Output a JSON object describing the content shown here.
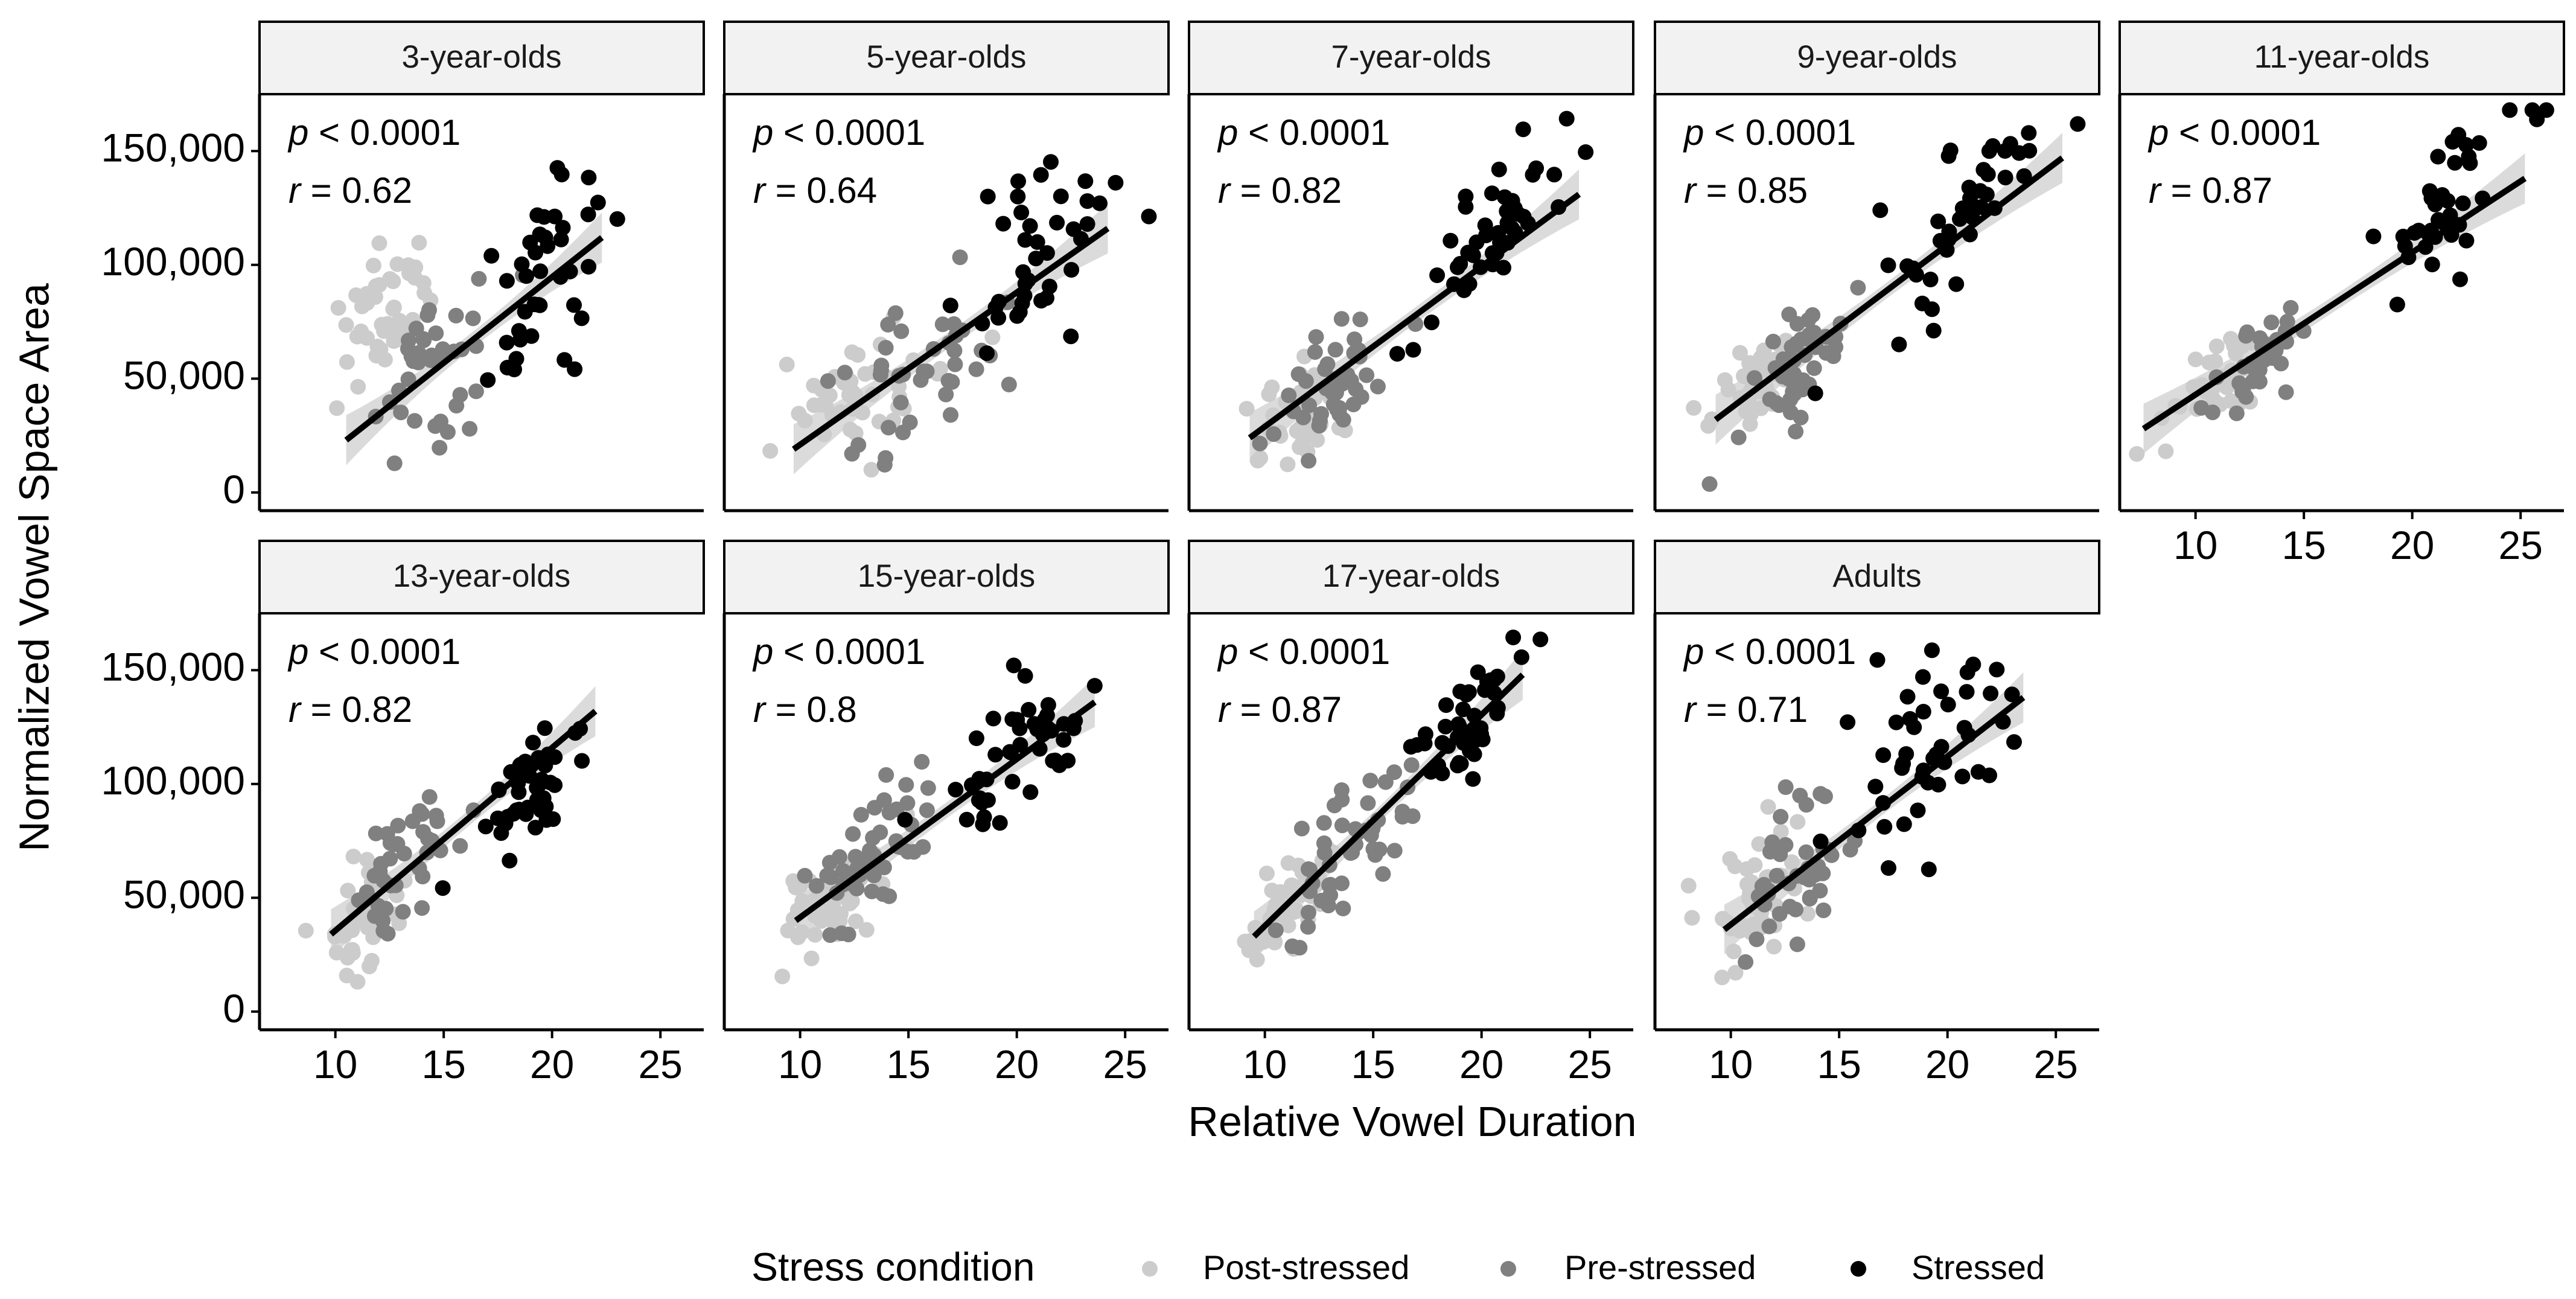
{
  "chart_data": {
    "type": "scatter",
    "layout": "facet-wrap, 2 rows x 5 columns",
    "xlabel": "Relative Vowel Duration",
    "ylabel": "Normalized Vowel Space Area",
    "xlim": [
      6.5,
      27
    ],
    "ylim": [
      -8000,
      175000
    ],
    "x_ticks": [
      10,
      15,
      20,
      25
    ],
    "x_tick_labels": [
      "10",
      "15",
      "20",
      "25"
    ],
    "y_ticks": [
      0,
      50000,
      100000,
      150000
    ],
    "y_tick_labels": [
      "0",
      "50,000",
      "100,000",
      "150,000"
    ],
    "legend": {
      "title": "Stress condition",
      "position": "bottom",
      "entries": [
        {
          "name": "Post-stressed",
          "color": "#cccccc"
        },
        {
          "name": "Pre-stressed",
          "color": "#808080"
        },
        {
          "name": "Stressed",
          "color": "#000000"
        }
      ]
    },
    "colors": {
      "Post-stressed": "#cccccc",
      "Pre-stressed": "#808080",
      "Stressed": "#000000",
      "band": "#bdbdbd"
    },
    "facets": [
      {
        "label": "3-year-olds",
        "p_text": "< 0.0001",
        "r_text": "= 0.62",
        "fit": {
          "x0": 10.5,
          "y0": 23000,
          "x1": 22.3,
          "y1": 112000
        },
        "series": [
          {
            "name": "Post-stressed",
            "n": 45,
            "xc": 12.4,
            "xs": 1.1,
            "ycs": [
              22000,
              4600
            ],
            "ys": 14000,
            "seed": 101
          },
          {
            "name": "Pre-stressed",
            "n": 40,
            "xc": 14.6,
            "xs": 1.5,
            "ycs": [
              -11000,
              4600
            ],
            "ys": 17000,
            "seed": 102
          },
          {
            "name": "Stressed",
            "n": 40,
            "xc": 19.6,
            "xs": 1.4,
            "ycs": [
              -42000,
              6800
            ],
            "ys": 22000,
            "seed": 103
          }
        ]
      },
      {
        "label": "5-year-olds",
        "p_text": "< 0.0001",
        "r_text": "= 0.64",
        "fit": {
          "x0": 9.7,
          "y0": 19000,
          "x1": 24.2,
          "y1": 116000
        },
        "series": [
          {
            "name": "Post-stressed",
            "n": 45,
            "xc": 12.5,
            "xs": 1.6,
            "ycs": [
              -2000,
              3600
            ],
            "ys": 14000,
            "seed": 201
          },
          {
            "name": "Pre-stressed",
            "n": 40,
            "xc": 15.5,
            "xs": 2.1,
            "ycs": [
              -17000,
              4700
            ],
            "ys": 16000,
            "seed": 202
          },
          {
            "name": "Stressed",
            "n": 40,
            "xc": 20.3,
            "xs": 1.8,
            "ycs": [
              -50000,
              7100
            ],
            "ys": 22000,
            "seed": 203
          }
        ]
      },
      {
        "label": "7-year-olds",
        "p_text": "< 0.0001",
        "r_text": "= 0.82",
        "fit": {
          "x0": 9.3,
          "y0": 24000,
          "x1": 24.5,
          "y1": 131000
        },
        "series": [
          {
            "name": "Post-stressed",
            "n": 40,
            "xc": 11.2,
            "xs": 1.2,
            "ycs": [
              -20000,
              4800
            ],
            "ys": 11000,
            "seed": 301
          },
          {
            "name": "Pre-stressed",
            "n": 45,
            "xc": 13.3,
            "xs": 1.4,
            "ycs": [
              -35000,
              6300
            ],
            "ys": 13000,
            "seed": 302
          },
          {
            "name": "Stressed",
            "n": 45,
            "xc": 20.8,
            "xs": 1.7,
            "ycs": [
              -70000,
              9000
            ],
            "ys": 14000,
            "seed": 303
          }
        ]
      },
      {
        "label": "9-year-olds",
        "p_text": "< 0.0001",
        "r_text": "= 0.85",
        "fit": {
          "x0": 9.3,
          "y0": 32000,
          "x1": 25.3,
          "y1": 147000
        },
        "series": [
          {
            "name": "Post-stressed",
            "n": 45,
            "xc": 11.3,
            "xs": 1.1,
            "ycs": [
              -25000,
              6600
            ],
            "ys": 9000,
            "seed": 401
          },
          {
            "name": "Pre-stressed",
            "n": 50,
            "xc": 13.2,
            "xs": 1.2,
            "ycs": [
              -30000,
              6700
            ],
            "ys": 11000,
            "seed": 402
          },
          {
            "name": "Stressed",
            "n": 45,
            "xc": 20.6,
            "xs": 1.8,
            "ycs": [
              -40000,
              7700
            ],
            "ys": 15000,
            "seed": 403
          }
        ]
      },
      {
        "label": "11-year-olds",
        "p_text": "< 0.0001",
        "r_text": "= 0.87",
        "fit": {
          "x0": 7.6,
          "y0": 28000,
          "x1": 25.2,
          "y1": 138000
        },
        "series": [
          {
            "name": "Post-stressed",
            "n": 40,
            "xc": 11.6,
            "xs": 1.1,
            "ycs": [
              -12000,
              5600
            ],
            "ys": 10000,
            "seed": 501
          },
          {
            "name": "Pre-stressed",
            "n": 40,
            "xc": 13.0,
            "xs": 1.0,
            "ycs": [
              -26000,
              6600
            ],
            "ys": 9000,
            "seed": 502
          },
          {
            "name": "Stressed",
            "n": 40,
            "xc": 21.8,
            "xs": 1.7,
            "ycs": [
              -50000,
              8200
            ],
            "ys": 13000,
            "seed": 503
          }
        ]
      },
      {
        "label": "13-year-olds",
        "p_text": "< 0.0001",
        "r_text": "= 0.82",
        "fit": {
          "x0": 9.8,
          "y0": 34000,
          "x1": 22.0,
          "y1": 132000
        },
        "series": [
          {
            "name": "Post-stressed",
            "n": 40,
            "xc": 11.4,
            "xs": 0.9,
            "ycs": [
              -60000,
              8900
            ],
            "ys": 12000,
            "seed": 601
          },
          {
            "name": "Pre-stressed",
            "n": 40,
            "xc": 13.2,
            "xs": 1.1,
            "ycs": [
              -40000,
              7900
            ],
            "ys": 15000,
            "seed": 602
          },
          {
            "name": "Stressed",
            "n": 45,
            "xc": 19.3,
            "xs": 1.5,
            "ycs": [
              -27000,
              6600
            ],
            "ys": 14000,
            "seed": 603
          }
        ]
      },
      {
        "label": "15-year-olds",
        "p_text": "< 0.0001",
        "r_text": "= 0.8",
        "fit": {
          "x0": 9.8,
          "y0": 40000,
          "x1": 23.6,
          "y1": 136000
        },
        "series": [
          {
            "name": "Post-stressed",
            "n": 50,
            "xc": 11.6,
            "xs": 1.2,
            "ycs": [
              -25000,
              6300
            ],
            "ys": 11000,
            "seed": 701
          },
          {
            "name": "Pre-stressed",
            "n": 50,
            "xc": 13.3,
            "xs": 1.4,
            "ycs": [
              -25000,
              7000
            ],
            "ys": 13000,
            "seed": 702
          },
          {
            "name": "Stressed",
            "n": 45,
            "xc": 20.0,
            "xs": 1.6,
            "ycs": [
              -25000,
              6700
            ],
            "ys": 14000,
            "seed": 703
          }
        ]
      },
      {
        "label": "17-year-olds",
        "p_text": "< 0.0001",
        "r_text": "= 0.87",
        "fit": {
          "x0": 9.5,
          "y0": 33000,
          "x1": 21.9,
          "y1": 148000
        },
        "series": [
          {
            "name": "Post-stressed",
            "n": 45,
            "xc": 11.0,
            "xs": 1.0,
            "ycs": [
              -50000,
              8900
            ],
            "ys": 10000,
            "seed": 801
          },
          {
            "name": "Pre-stressed",
            "n": 50,
            "xc": 14.0,
            "xs": 1.6,
            "ycs": [
              -60000,
              9400
            ],
            "ys": 15000,
            "seed": 802
          },
          {
            "name": "Stressed",
            "n": 45,
            "xc": 19.3,
            "xs": 1.2,
            "ycs": [
              -40000,
              8500
            ],
            "ys": 13000,
            "seed": 803
          }
        ]
      },
      {
        "label": "Adults",
        "p_text": "< 0.0001",
        "r_text": "= 0.71",
        "fit": {
          "x0": 9.7,
          "y0": 36000,
          "x1": 23.5,
          "y1": 138000
        },
        "series": [
          {
            "name": "Post-stressed",
            "n": 45,
            "xc": 11.2,
            "xs": 1.1,
            "ycs": [
              -40000,
              7900
            ],
            "ys": 14000,
            "seed": 901
          },
          {
            "name": "Pre-stressed",
            "n": 45,
            "xc": 13.3,
            "xs": 1.4,
            "ycs": [
              -30000,
              7000
            ],
            "ys": 17000,
            "seed": 902
          },
          {
            "name": "Stressed",
            "n": 45,
            "xc": 19.2,
            "xs": 2.0,
            "ycs": [
              -10000,
              6500
            ],
            "ys": 18000,
            "seed": 903
          }
        ]
      }
    ]
  }
}
